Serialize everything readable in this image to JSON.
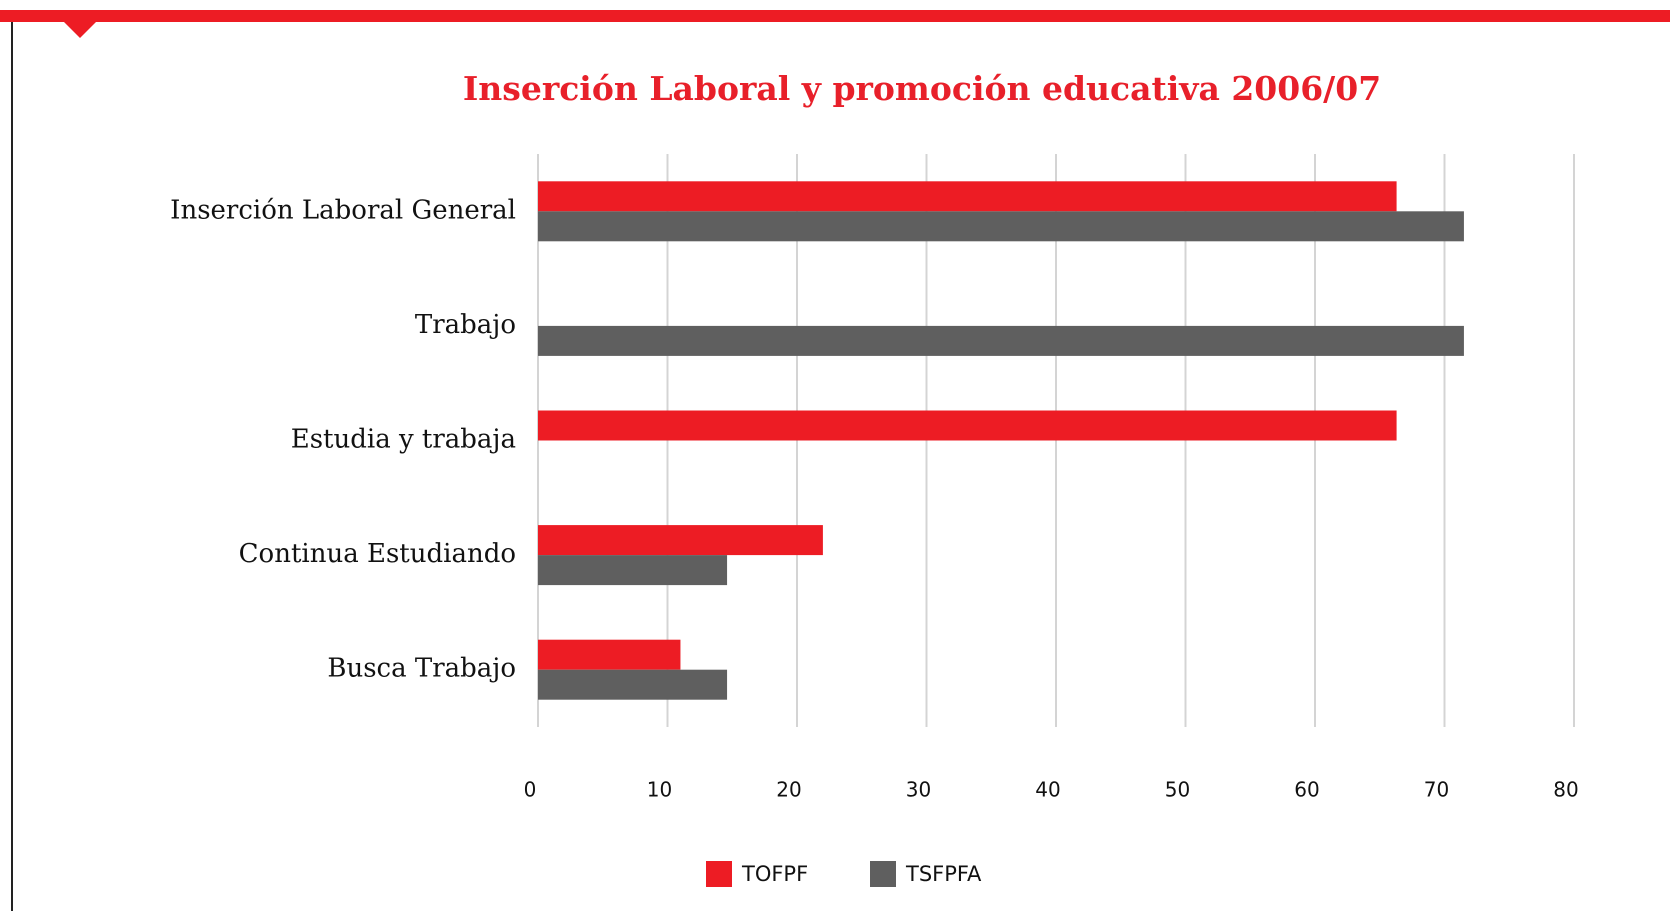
{
  "chart_data": {
    "type": "bar",
    "orientation": "horizontal",
    "title": "Inserción Laboral y promoción educativa 2006/07",
    "categories": [
      "Inserción Laboral General",
      "Trabajo",
      "Estudia y trabaja",
      "Continua Estudiando",
      "Busca Trabajo"
    ],
    "series": [
      {
        "name": "TOFPF",
        "color": "#ed1c24",
        "values": [
          66.3,
          null,
          66.3,
          22,
          11
        ]
      },
      {
        "name": "TSFPFA",
        "color": "#5f5f5f",
        "values": [
          71.5,
          71.5,
          null,
          14.6,
          14.6
        ]
      }
    ],
    "xlim": [
      0,
      80
    ],
    "xticks": [
      0,
      10,
      20,
      30,
      40,
      50,
      60,
      70,
      80
    ],
    "grid": true,
    "legend": "bottom"
  }
}
